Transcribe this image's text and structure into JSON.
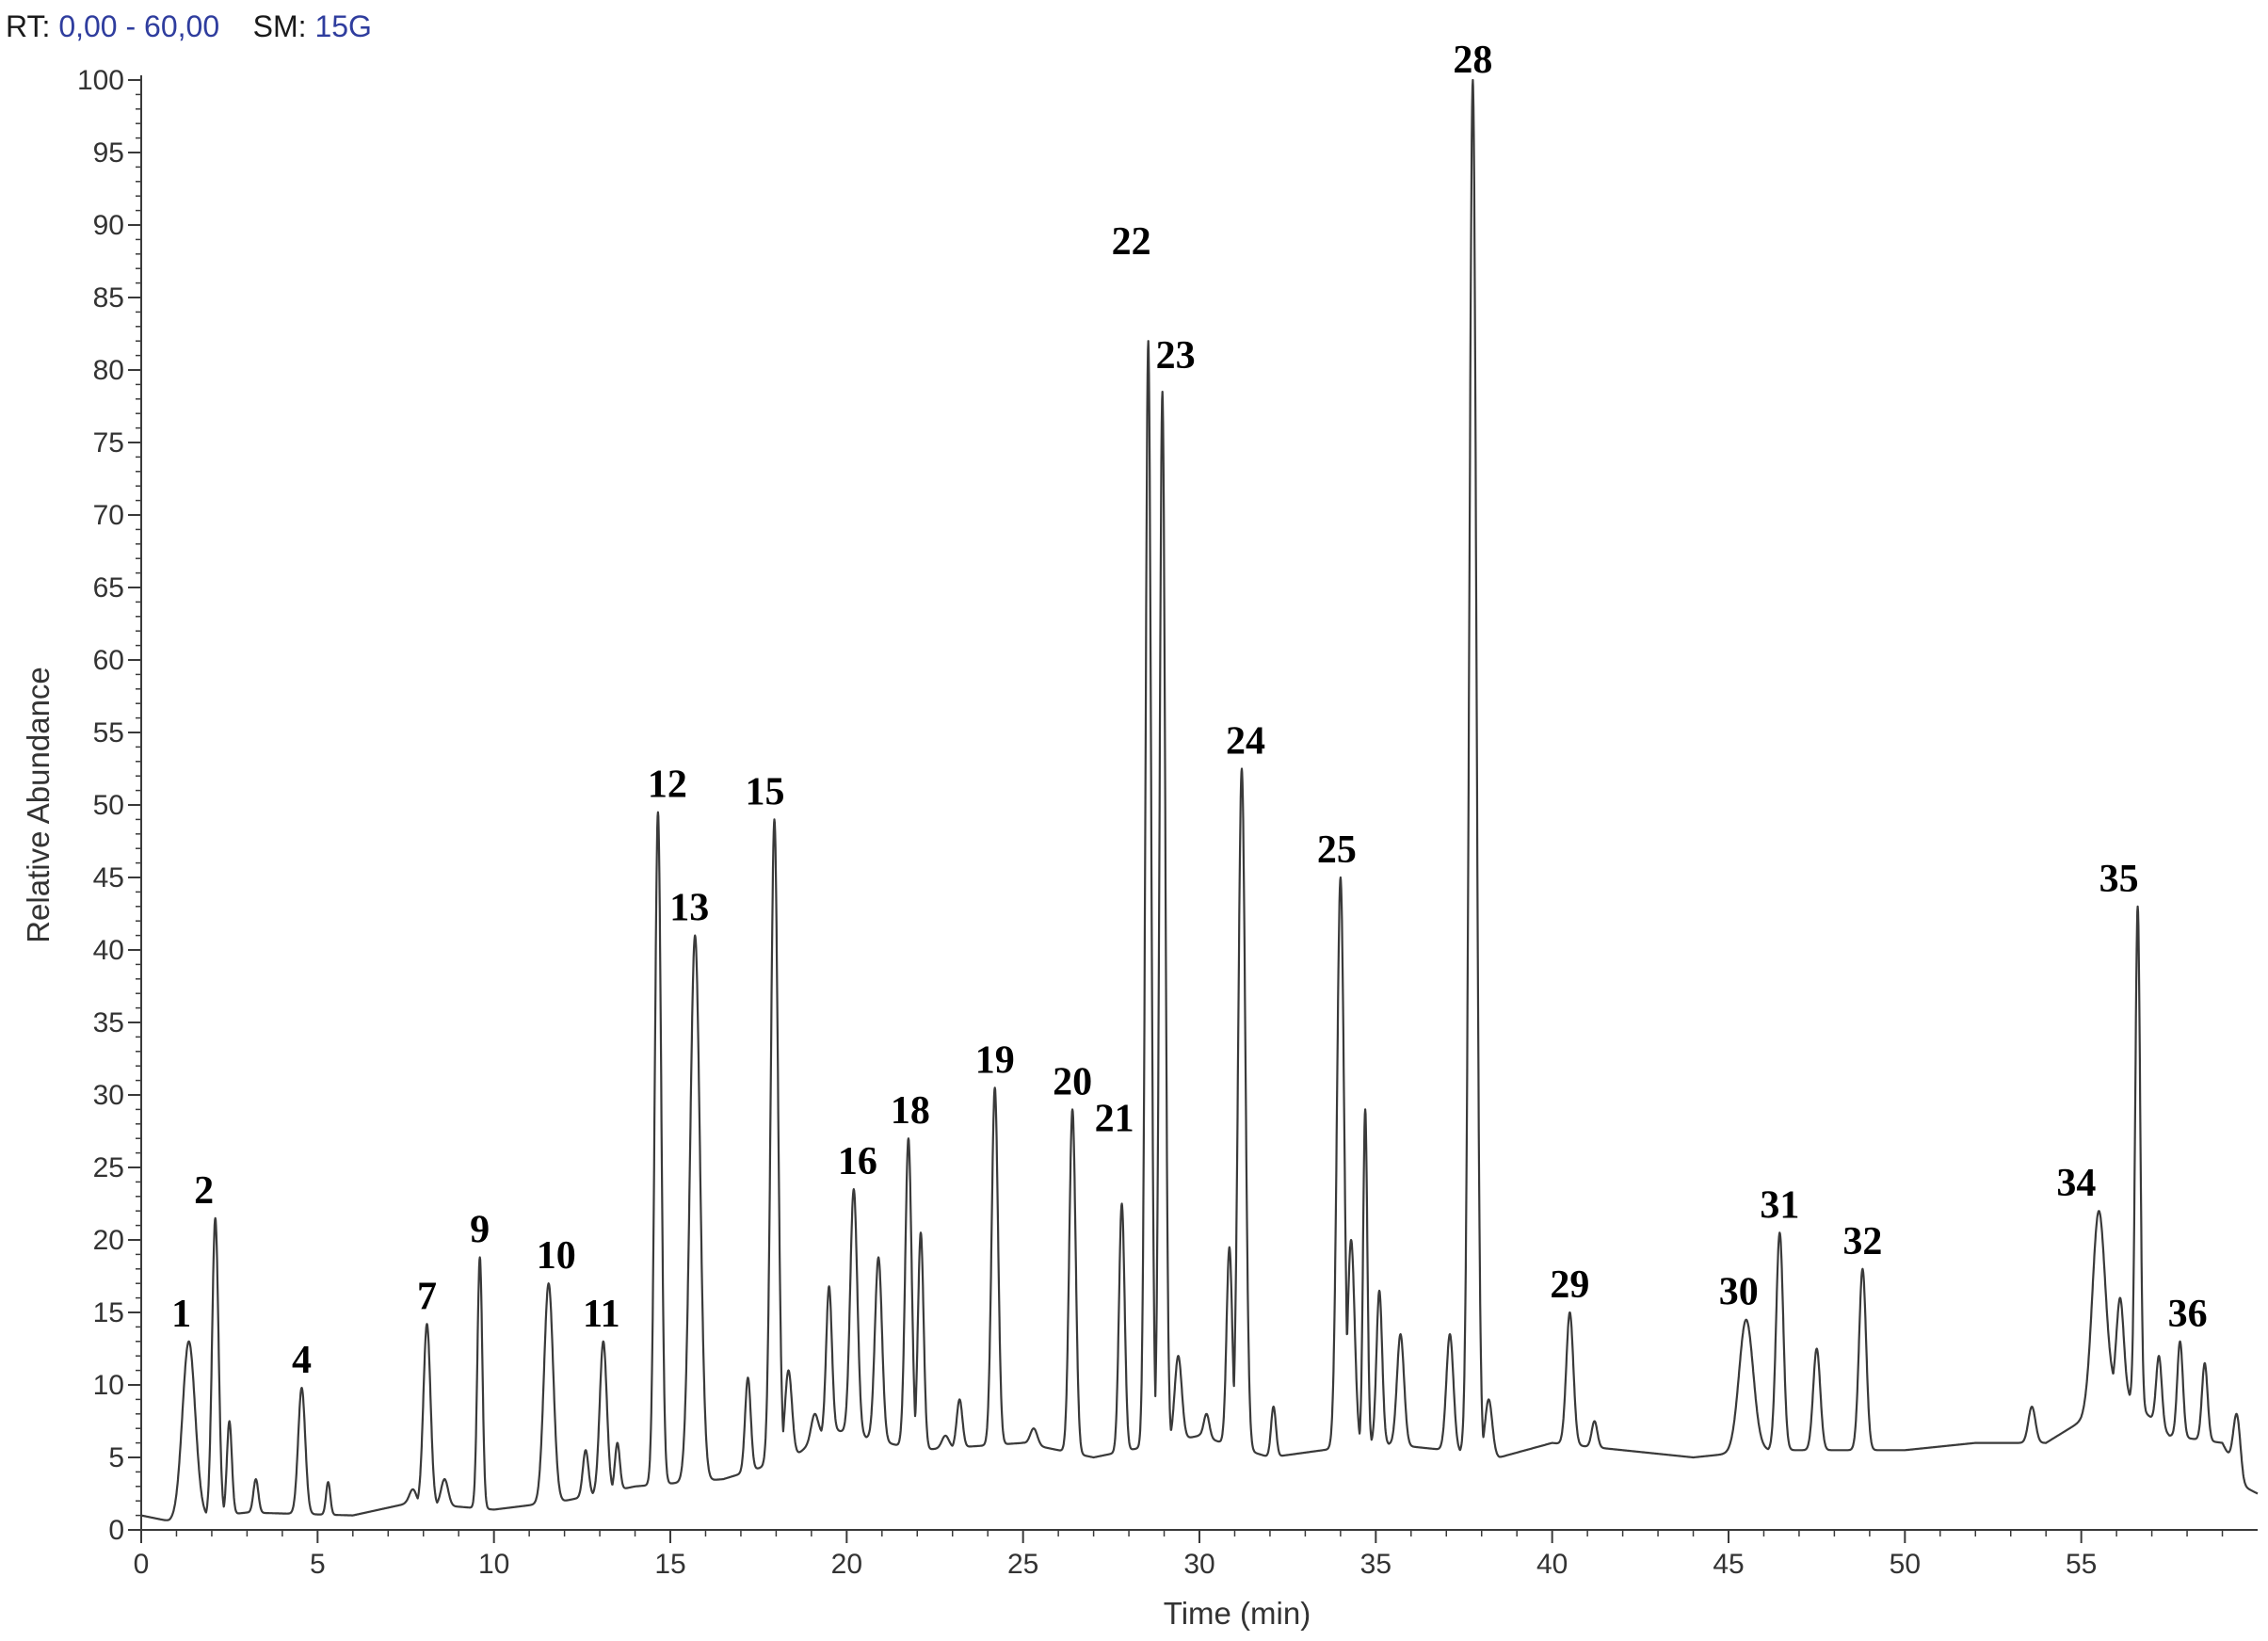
{
  "header": {
    "rt_label": "RT:",
    "rt_value": "0,00 - 60,00",
    "sm_label": "SM:",
    "sm_value": "15G"
  },
  "colors": {
    "trace": "#3a3a3a",
    "axis": "#3a3a3a",
    "header_value": "#2f3d9e"
  },
  "chart_data": {
    "type": "line",
    "xlabel": "Time (min)",
    "ylabel": "Relative Abundance",
    "xlim": [
      0,
      60
    ],
    "ylim": [
      0,
      100
    ],
    "xticks": [
      0,
      5,
      10,
      15,
      20,
      25,
      30,
      35,
      40,
      45,
      50,
      55
    ],
    "yticks": [
      0,
      5,
      10,
      15,
      20,
      25,
      30,
      35,
      40,
      45,
      50,
      55,
      60,
      65,
      70,
      75,
      80,
      85,
      90,
      95,
      100
    ],
    "grid": false,
    "baseline": [
      [
        0,
        1.0
      ],
      [
        0.8,
        0.6
      ],
      [
        3,
        1.2
      ],
      [
        6,
        1.0
      ],
      [
        7.5,
        1.8
      ],
      [
        9,
        1.6
      ],
      [
        10,
        1.4
      ],
      [
        12,
        2.0
      ],
      [
        14,
        3.0
      ],
      [
        16.5,
        3.5
      ],
      [
        18.5,
        5.0
      ],
      [
        19.5,
        7.0
      ],
      [
        22,
        5.5
      ],
      [
        25,
        6.0
      ],
      [
        27,
        5.0
      ],
      [
        30,
        6.5
      ],
      [
        32,
        5.0
      ],
      [
        35,
        6.0
      ],
      [
        37,
        5.5
      ],
      [
        38.5,
        5.0
      ],
      [
        40,
        6.0
      ],
      [
        42,
        5.5
      ],
      [
        44,
        5.0
      ],
      [
        46,
        5.5
      ],
      [
        48,
        5.5
      ],
      [
        50,
        5.5
      ],
      [
        52,
        6.0
      ],
      [
        54,
        6.0
      ],
      [
        55,
        7.5
      ],
      [
        56,
        10.0
      ],
      [
        57.5,
        6.5
      ],
      [
        59,
        6.0
      ],
      [
        59.6,
        3.0
      ],
      [
        60,
        2.5
      ]
    ],
    "peaks": [
      {
        "label": "1",
        "rt": 1.35,
        "height": 13.0,
        "width": 0.18
      },
      {
        "label": "2",
        "rt": 2.1,
        "height": 21.5,
        "width": 0.09
      },
      {
        "label": "",
        "rt": 2.5,
        "height": 7.5,
        "width": 0.07
      },
      {
        "label": "",
        "rt": 3.25,
        "height": 3.5,
        "width": 0.07
      },
      {
        "label": "4",
        "rt": 4.55,
        "height": 9.8,
        "width": 0.1
      },
      {
        "label": "",
        "rt": 5.3,
        "height": 3.3,
        "width": 0.06
      },
      {
        "label": "",
        "rt": 7.7,
        "height": 2.8,
        "width": 0.1
      },
      {
        "label": "7",
        "rt": 8.1,
        "height": 14.2,
        "width": 0.1
      },
      {
        "label": "",
        "rt": 8.6,
        "height": 3.5,
        "width": 0.1
      },
      {
        "label": "9",
        "rt": 9.6,
        "height": 18.8,
        "width": 0.07
      },
      {
        "label": "10",
        "rt": 11.55,
        "height": 17.0,
        "width": 0.13
      },
      {
        "label": "",
        "rt": 12.6,
        "height": 5.5,
        "width": 0.08
      },
      {
        "label": "11",
        "rt": 13.1,
        "height": 13.0,
        "width": 0.1
      },
      {
        "label": "",
        "rt": 13.5,
        "height": 6.0,
        "width": 0.07
      },
      {
        "label": "12",
        "rt": 14.65,
        "height": 49.5,
        "width": 0.09
      },
      {
        "label": "13",
        "rt": 15.7,
        "height": 41.0,
        "width": 0.14
      },
      {
        "label": "",
        "rt": 17.2,
        "height": 10.5,
        "width": 0.08
      },
      {
        "label": "15",
        "rt": 17.95,
        "height": 49.0,
        "width": 0.1
      },
      {
        "label": "",
        "rt": 18.35,
        "height": 11.0,
        "width": 0.1
      },
      {
        "label": "",
        "rt": 19.1,
        "height": 8.0,
        "width": 0.1
      },
      {
        "label": "",
        "rt": 19.5,
        "height": 16.8,
        "width": 0.08
      },
      {
        "label": "16",
        "rt": 20.2,
        "height": 23.5,
        "width": 0.1
      },
      {
        "label": "",
        "rt": 20.9,
        "height": 18.8,
        "width": 0.1
      },
      {
        "label": "18",
        "rt": 21.75,
        "height": 27.0,
        "width": 0.09
      },
      {
        "label": "",
        "rt": 22.1,
        "height": 20.5,
        "width": 0.08
      },
      {
        "label": "",
        "rt": 22.8,
        "height": 6.5,
        "width": 0.1
      },
      {
        "label": "",
        "rt": 23.2,
        "height": 9.0,
        "width": 0.08
      },
      {
        "label": "19",
        "rt": 24.2,
        "height": 30.5,
        "width": 0.09
      },
      {
        "label": "",
        "rt": 25.3,
        "height": 7.0,
        "width": 0.1
      },
      {
        "label": "20",
        "rt": 26.4,
        "height": 29.0,
        "width": 0.09
      },
      {
        "label": "21",
        "rt": 27.8,
        "height": 22.5,
        "width": 0.08
      },
      {
        "label": "22",
        "rt": 28.55,
        "height": 82.0,
        "width": 0.08
      },
      {
        "label": "23",
        "rt": 28.95,
        "height": 78.5,
        "width": 0.08
      },
      {
        "label": "",
        "rt": 29.4,
        "height": 12.0,
        "width": 0.1
      },
      {
        "label": "",
        "rt": 30.2,
        "height": 8.0,
        "width": 0.08
      },
      {
        "label": "",
        "rt": 30.85,
        "height": 19.5,
        "width": 0.08
      },
      {
        "label": "24",
        "rt": 31.2,
        "height": 52.5,
        "width": 0.1
      },
      {
        "label": "",
        "rt": 32.1,
        "height": 8.5,
        "width": 0.07
      },
      {
        "label": "25",
        "rt": 34.0,
        "height": 45.0,
        "width": 0.1
      },
      {
        "label": "",
        "rt": 34.3,
        "height": 20.0,
        "width": 0.1
      },
      {
        "label": "",
        "rt": 34.7,
        "height": 29.0,
        "width": 0.06
      },
      {
        "label": "",
        "rt": 35.1,
        "height": 16.5,
        "width": 0.08
      },
      {
        "label": "",
        "rt": 35.7,
        "height": 13.5,
        "width": 0.1
      },
      {
        "label": "",
        "rt": 37.1,
        "height": 13.5,
        "width": 0.1
      },
      {
        "label": "28",
        "rt": 37.75,
        "height": 100.0,
        "width": 0.1
      },
      {
        "label": "",
        "rt": 38.2,
        "height": 9.0,
        "width": 0.1
      },
      {
        "label": "29",
        "rt": 40.5,
        "height": 15.0,
        "width": 0.1
      },
      {
        "label": "",
        "rt": 41.2,
        "height": 7.5,
        "width": 0.08
      },
      {
        "label": "30",
        "rt": 45.5,
        "height": 14.5,
        "width": 0.2
      },
      {
        "label": "31",
        "rt": 46.45,
        "height": 20.5,
        "width": 0.1
      },
      {
        "label": "",
        "rt": 47.5,
        "height": 12.5,
        "width": 0.1
      },
      {
        "label": "32",
        "rt": 48.8,
        "height": 18.0,
        "width": 0.1
      },
      {
        "label": "",
        "rt": 53.6,
        "height": 8.5,
        "width": 0.1
      },
      {
        "label": "34",
        "rt": 55.5,
        "height": 22.0,
        "width": 0.18
      },
      {
        "label": "",
        "rt": 56.1,
        "height": 16.0,
        "width": 0.1
      },
      {
        "label": "35",
        "rt": 56.6,
        "height": 43.0,
        "width": 0.07
      },
      {
        "label": "",
        "rt": 57.2,
        "height": 12.0,
        "width": 0.08
      },
      {
        "label": "36",
        "rt": 57.8,
        "height": 13.0,
        "width": 0.08
      },
      {
        "label": "",
        "rt": 58.5,
        "height": 11.5,
        "width": 0.08
      },
      {
        "label": "",
        "rt": 59.4,
        "height": 8.0,
        "width": 0.1
      }
    ]
  }
}
